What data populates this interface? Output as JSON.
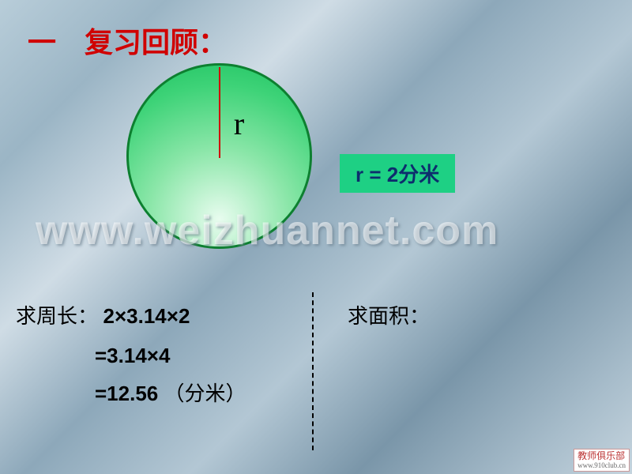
{
  "title": "一　复习回顾：",
  "circle": {
    "radius_label": "r",
    "border_color": "#0d8030",
    "fill_gradient": [
      "#e8fcef",
      "#8ae6a8",
      "#3ed378",
      "#1cc15f"
    ],
    "radius_line_color": "#d00000"
  },
  "r_box": {
    "text": "r = 2分米",
    "bg": "#1ed084",
    "color": "#0d2d6d"
  },
  "watermark": "www.weizhuannet.com",
  "perimeter": {
    "label": "求周长：",
    "expr": "2×3.14×2",
    "step1": "=3.14×4",
    "result": "=12.56",
    "unit": "（分米）"
  },
  "area": {
    "label": "求面积："
  },
  "badge": {
    "main": "教师俱乐部",
    "sub": "www.910club.cn"
  }
}
